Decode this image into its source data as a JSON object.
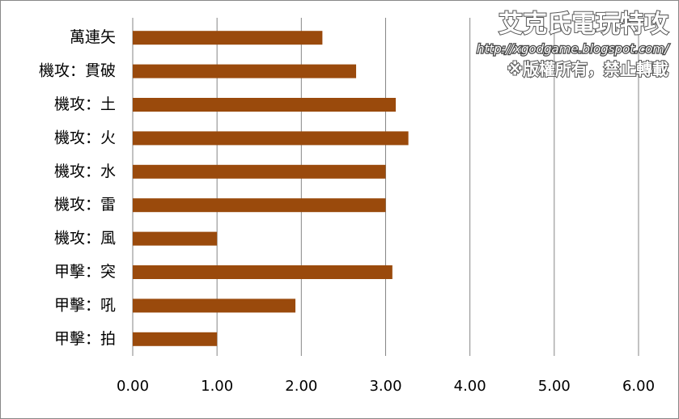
{
  "chart_data": {
    "type": "barh",
    "categories": [
      "萬連矢",
      "機攻：貫破",
      "機攻：土",
      "機攻：火",
      "機攻：水",
      "機攻：雷",
      "機攻：風",
      "甲擊：突",
      "甲擊：吼",
      "甲擊：拍"
    ],
    "values": [
      2.25,
      2.65,
      3.12,
      3.27,
      3.0,
      3.0,
      1.0,
      3.08,
      1.93,
      1.0
    ],
    "color": "#9a4a0c",
    "xlim": [
      0,
      6
    ],
    "xticks": [
      {
        "value": 0,
        "label": "0.00"
      },
      {
        "value": 1,
        "label": "1.00"
      },
      {
        "value": 2,
        "label": "2.00"
      },
      {
        "value": 3,
        "label": "3.00"
      },
      {
        "value": 4,
        "label": "4.00"
      },
      {
        "value": 5,
        "label": "5.00"
      },
      {
        "value": 6,
        "label": "6.00"
      }
    ],
    "grid": true,
    "annotations": [
      "艾克氏電玩特攻",
      "http://xgodgame.blogspot.com/",
      "※版權所有，禁止轉載"
    ]
  }
}
